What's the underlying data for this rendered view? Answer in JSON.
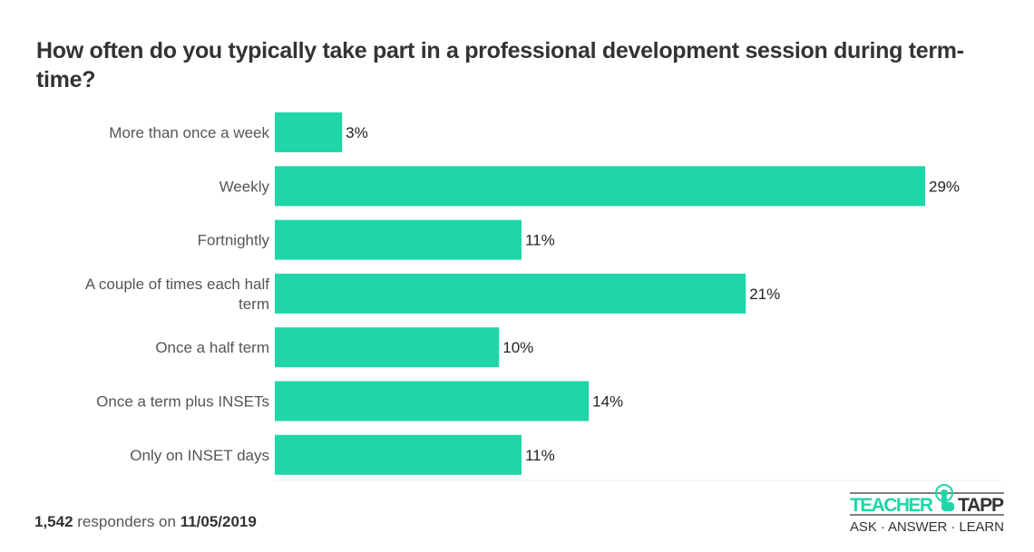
{
  "chart_data": {
    "type": "bar",
    "orientation": "horizontal",
    "title": "How often do you typically take part in a professional development session during term-time?",
    "categories": [
      "More than once a week",
      "Weekly",
      "Fortnightly",
      "A couple of times each half term",
      "Once a half term",
      "Once a term plus INSETs",
      "Only on INSET days"
    ],
    "values": [
      3,
      29,
      11,
      21,
      10,
      14,
      11
    ],
    "value_labels": [
      "3%",
      "29%",
      "11%",
      "21%",
      "10%",
      "14%",
      "11%"
    ],
    "bar_color": "#1fd6a8",
    "grid": false,
    "legend": "none"
  },
  "footer": {
    "count": "1,542",
    "text": " responders on ",
    "date": "11/05/2019"
  },
  "logo": {
    "word1": "TEACHER",
    "word2": "TAPP",
    "tagline": "ASK · ANSWER · LEARN",
    "color": "#1fd6a8"
  }
}
